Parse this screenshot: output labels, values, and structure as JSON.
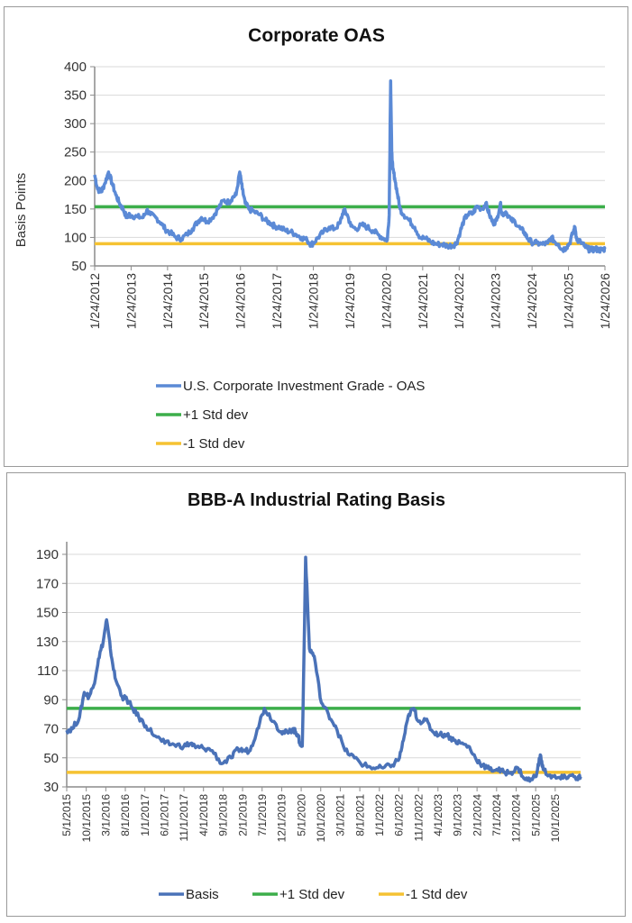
{
  "chart_data": [
    {
      "type": "line",
      "title": "Corporate OAS",
      "xlabel": "",
      "ylabel": "Basis Points",
      "ylim": [
        50,
        400
      ],
      "yticks": [
        "400",
        "350",
        "300",
        "250",
        "200",
        "150",
        "100",
        "50"
      ],
      "x_range": [
        2012.07,
        2026.07
      ],
      "xticks": [
        "1/24/2012",
        "1/24/2013",
        "1/24/2014",
        "1/24/2015",
        "1/24/2016",
        "1/24/2017",
        "1/24/2018",
        "1/24/2019",
        "1/24/2020",
        "1/24/2021",
        "1/24/2022",
        "1/24/2023",
        "1/24/2024",
        "1/24/2025",
        "1/24/2026"
      ],
      "grid": true,
      "legend_position": "bottom",
      "colors": {
        "series": "#5b8ad6",
        "plus": "#3cae4a",
        "minus": "#f5c232"
      },
      "series": [
        {
          "name": "U.S. Corporate Investment Grade - OAS",
          "x": [
            2012.07,
            2012.15,
            2012.25,
            2012.35,
            2012.45,
            2012.55,
            2012.65,
            2012.75,
            2012.85,
            2012.95,
            2013.0,
            2013.1,
            2013.25,
            2013.4,
            2013.5,
            2013.6,
            2013.75,
            2013.9,
            2014.0,
            2014.15,
            2014.3,
            2014.45,
            2014.6,
            2014.75,
            2014.9,
            2015.0,
            2015.15,
            2015.3,
            2015.45,
            2015.6,
            2015.75,
            2015.85,
            2015.95,
            2016.05,
            2016.12,
            2016.2,
            2016.3,
            2016.45,
            2016.6,
            2016.75,
            2016.9,
            2017.0,
            2017.15,
            2017.3,
            2017.45,
            2017.6,
            2017.75,
            2017.9,
            2018.0,
            2018.07,
            2018.2,
            2018.35,
            2018.5,
            2018.65,
            2018.8,
            2018.9,
            2019.0,
            2019.1,
            2019.25,
            2019.4,
            2019.55,
            2019.7,
            2019.85,
            2020.0,
            2020.1,
            2020.15,
            2020.19,
            2020.22,
            2020.25,
            2020.3,
            2020.38,
            2020.45,
            2020.55,
            2020.7,
            2020.85,
            2021.0,
            2021.15,
            2021.3,
            2021.45,
            2021.6,
            2021.75,
            2021.9,
            2022.0,
            2022.1,
            2022.2,
            2022.3,
            2022.45,
            2022.55,
            2022.7,
            2022.8,
            2022.9,
            2023.0,
            2023.1,
            2023.2,
            2023.25,
            2023.35,
            2023.5,
            2023.6,
            2023.75,
            2023.85,
            2023.95,
            2024.05,
            2024.2,
            2024.35,
            2024.5,
            2024.6,
            2024.7,
            2024.8,
            2024.9,
            2025.0,
            2025.1,
            2025.2,
            2025.25,
            2025.3,
            2025.4,
            2025.5,
            2025.6,
            2025.7,
            2025.8,
            2025.9,
            2026.0,
            2026.07
          ],
          "y": [
            210,
            185,
            180,
            195,
            215,
            195,
            175,
            160,
            150,
            135,
            140,
            138,
            136,
            135,
            148,
            140,
            135,
            125,
            115,
            108,
            100,
            98,
            105,
            115,
            128,
            135,
            128,
            135,
            150,
            165,
            162,
            170,
            175,
            215,
            185,
            160,
            150,
            145,
            140,
            130,
            125,
            120,
            118,
            112,
            110,
            105,
            100,
            95,
            88,
            90,
            100,
            110,
            118,
            115,
            125,
            148,
            140,
            120,
            115,
            122,
            118,
            112,
            105,
            98,
            96,
            140,
            375,
            250,
            220,
            205,
            175,
            150,
            140,
            130,
            118,
            100,
            98,
            92,
            88,
            88,
            85,
            86,
            90,
            110,
            130,
            140,
            142,
            155,
            150,
            160,
            140,
            125,
            130,
            160,
            140,
            145,
            130,
            128,
            115,
            110,
            98,
            92,
            90,
            88,
            90,
            100,
            92,
            88,
            78,
            82,
            90,
            110,
            118,
            95,
            92,
            85,
            80,
            78,
            80,
            78,
            78,
            80
          ]
        },
        {
          "name": "+1 Std dev",
          "value": 154
        },
        {
          "name": "-1 Std dev",
          "value": 89
        }
      ]
    },
    {
      "type": "line",
      "title": "BBB-A Industrial Rating Basis",
      "xlabel": "",
      "ylabel": "",
      "ylim": [
        30,
        190
      ],
      "yticks": [
        "190",
        "170",
        "150",
        "130",
        "110",
        "90",
        "70",
        "50",
        "30"
      ],
      "x_range": [
        2015.33,
        2026.17
      ],
      "xticks": [
        "5/1/2015",
        "10/1/2015",
        "3/1/2016",
        "8/1/2016",
        "1/1/2017",
        "6/1/2017",
        "11/1/2017",
        "4/1/2018",
        "9/1/2018",
        "2/1/2019",
        "7/1/2019",
        "12/1/2019",
        "5/1/2020",
        "10/1/2020",
        "3/1/2021",
        "8/1/2021",
        "1/1/2022",
        "6/1/2022",
        "11/1/2022",
        "4/1/2023",
        "9/1/2023",
        "2/1/2024",
        "7/1/2024",
        "12/1/2024",
        "5/1/2025",
        "10/1/2025"
      ],
      "grid": true,
      "legend_position": "bottom",
      "colors": {
        "series": "#4a72b8",
        "plus": "#3cae4a",
        "minus": "#f5c232"
      },
      "series": [
        {
          "name": "Basis",
          "x": [
            2015.33,
            2015.45,
            2015.6,
            2015.7,
            2015.8,
            2015.9,
            2016.0,
            2016.1,
            2016.17,
            2016.25,
            2016.35,
            2016.5,
            2016.6,
            2016.7,
            2016.85,
            2017.0,
            2017.2,
            2017.4,
            2017.6,
            2017.8,
            2017.95,
            2018.05,
            2018.2,
            2018.4,
            2018.6,
            2018.8,
            2018.95,
            2019.05,
            2019.2,
            2019.35,
            2019.5,
            2019.7,
            2019.85,
            2020.0,
            2020.1,
            2020.15,
            2020.2,
            2020.25,
            2020.3,
            2020.37,
            2020.45,
            2020.55,
            2020.7,
            2020.85,
            2021.0,
            2021.2,
            2021.4,
            2021.6,
            2021.8,
            2022.0,
            2022.2,
            2022.35,
            2022.45,
            2022.55,
            2022.65,
            2022.75,
            2022.9,
            2023.05,
            2023.2,
            2023.35,
            2023.5,
            2023.65,
            2023.8,
            2023.95,
            2024.1,
            2024.25,
            2024.4,
            2024.55,
            2024.7,
            2024.85,
            2025.0,
            2025.15,
            2025.25,
            2025.32,
            2025.38,
            2025.5,
            2025.65,
            2025.8,
            2025.95,
            2026.1,
            2026.17
          ],
          "y": [
            69,
            70,
            78,
            95,
            92,
            100,
            118,
            130,
            145,
            125,
            105,
            92,
            90,
            85,
            78,
            72,
            65,
            60,
            59,
            58,
            60,
            57,
            57,
            55,
            46,
            50,
            56,
            55,
            55,
            70,
            84,
            75,
            68,
            67,
            70,
            68,
            66,
            60,
            58,
            188,
            125,
            120,
            88,
            80,
            72,
            55,
            50,
            45,
            43,
            43,
            45,
            50,
            65,
            80,
            84,
            75,
            76,
            68,
            66,
            66,
            62,
            60,
            58,
            50,
            45,
            42,
            42,
            40,
            40,
            43,
            35,
            35,
            40,
            52,
            42,
            38,
            36,
            36,
            38,
            36,
            37
          ]
        },
        {
          "name": "+1 Std dev",
          "value": 84
        },
        {
          "name": "-1 Std dev",
          "value": 40
        }
      ]
    }
  ]
}
